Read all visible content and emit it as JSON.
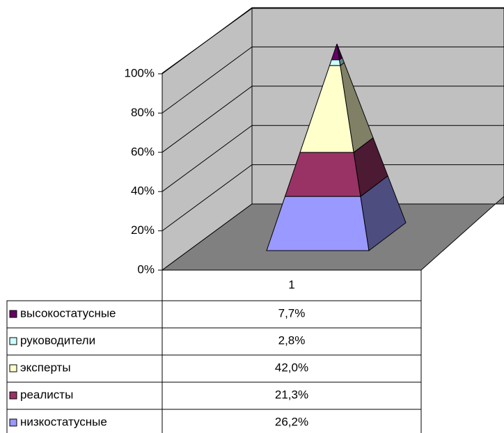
{
  "chart_data": {
    "type": "pyramid3d",
    "categories": [
      "1"
    ],
    "series": [
      {
        "name": "низкостатусные",
        "color": "#9999ff",
        "values": [
          26.2
        ],
        "value_labels": [
          "26,2%"
        ]
      },
      {
        "name": "реалисты",
        "color": "#993366",
        "values": [
          21.3
        ],
        "value_labels": [
          "21,3%"
        ]
      },
      {
        "name": "эксперты",
        "color": "#ffffcc",
        "values": [
          42.0
        ],
        "value_labels": [
          "42,0%"
        ]
      },
      {
        "name": "руководители",
        "color": "#ccffff",
        "values": [
          2.8
        ],
        "value_labels": [
          "2,8%"
        ]
      },
      {
        "name": "высокостатусные",
        "color": "#660066",
        "values": [
          7.7
        ],
        "value_labels": [
          "7,7%"
        ]
      }
    ],
    "ylim": [
      0,
      100
    ],
    "yticks": [
      {
        "value": 0,
        "label": "0%"
      },
      {
        "value": 20,
        "label": "20%"
      },
      {
        "value": 40,
        "label": "40%"
      },
      {
        "value": 60,
        "label": "60%"
      },
      {
        "value": 80,
        "label": "80%"
      },
      {
        "value": 100,
        "label": "100%"
      }
    ],
    "grid": true,
    "stacked": "percent",
    "data_table": true
  }
}
